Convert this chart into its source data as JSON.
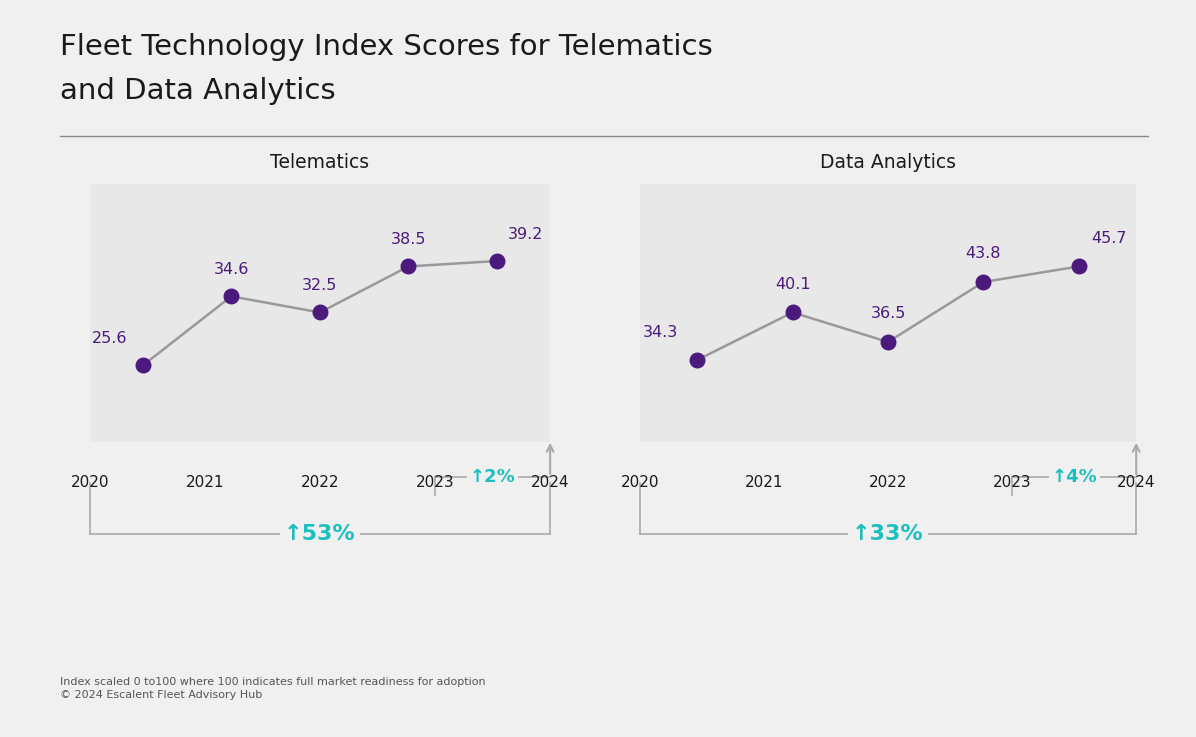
{
  "title_line1": "Fleet Technology Index Scores for Telematics",
  "title_line2": "and Data Analytics",
  "title_fontsize": 21,
  "background_color": "#f0f0f0",
  "panel_color": "#e8e8e8",
  "line_color": "#999999",
  "dot_color": "#4b1a7c",
  "label_color": "#4b1a7c",
  "teal_color": "#1abfbf",
  "gray_color": "#aaaaaa",
  "years": [
    2020,
    2021,
    2022,
    2023,
    2024
  ],
  "telematics_values": [
    25.6,
    34.6,
    32.5,
    38.5,
    39.2
  ],
  "analytics_values": [
    34.3,
    40.1,
    36.5,
    43.8,
    45.7
  ],
  "telematics_title": "Telematics",
  "analytics_title": "Data Analytics",
  "telematics_overall_pct": "↑53%",
  "telematics_recent_pct": "↑2%",
  "analytics_overall_pct": "↑33%",
  "analytics_recent_pct": "↑4%",
  "footnote_line1": "Index scaled 0 to100 where 100 indicates full market readiness for adoption",
  "footnote_line2": "© 2024 Escalent Fleet Advisory Hub"
}
